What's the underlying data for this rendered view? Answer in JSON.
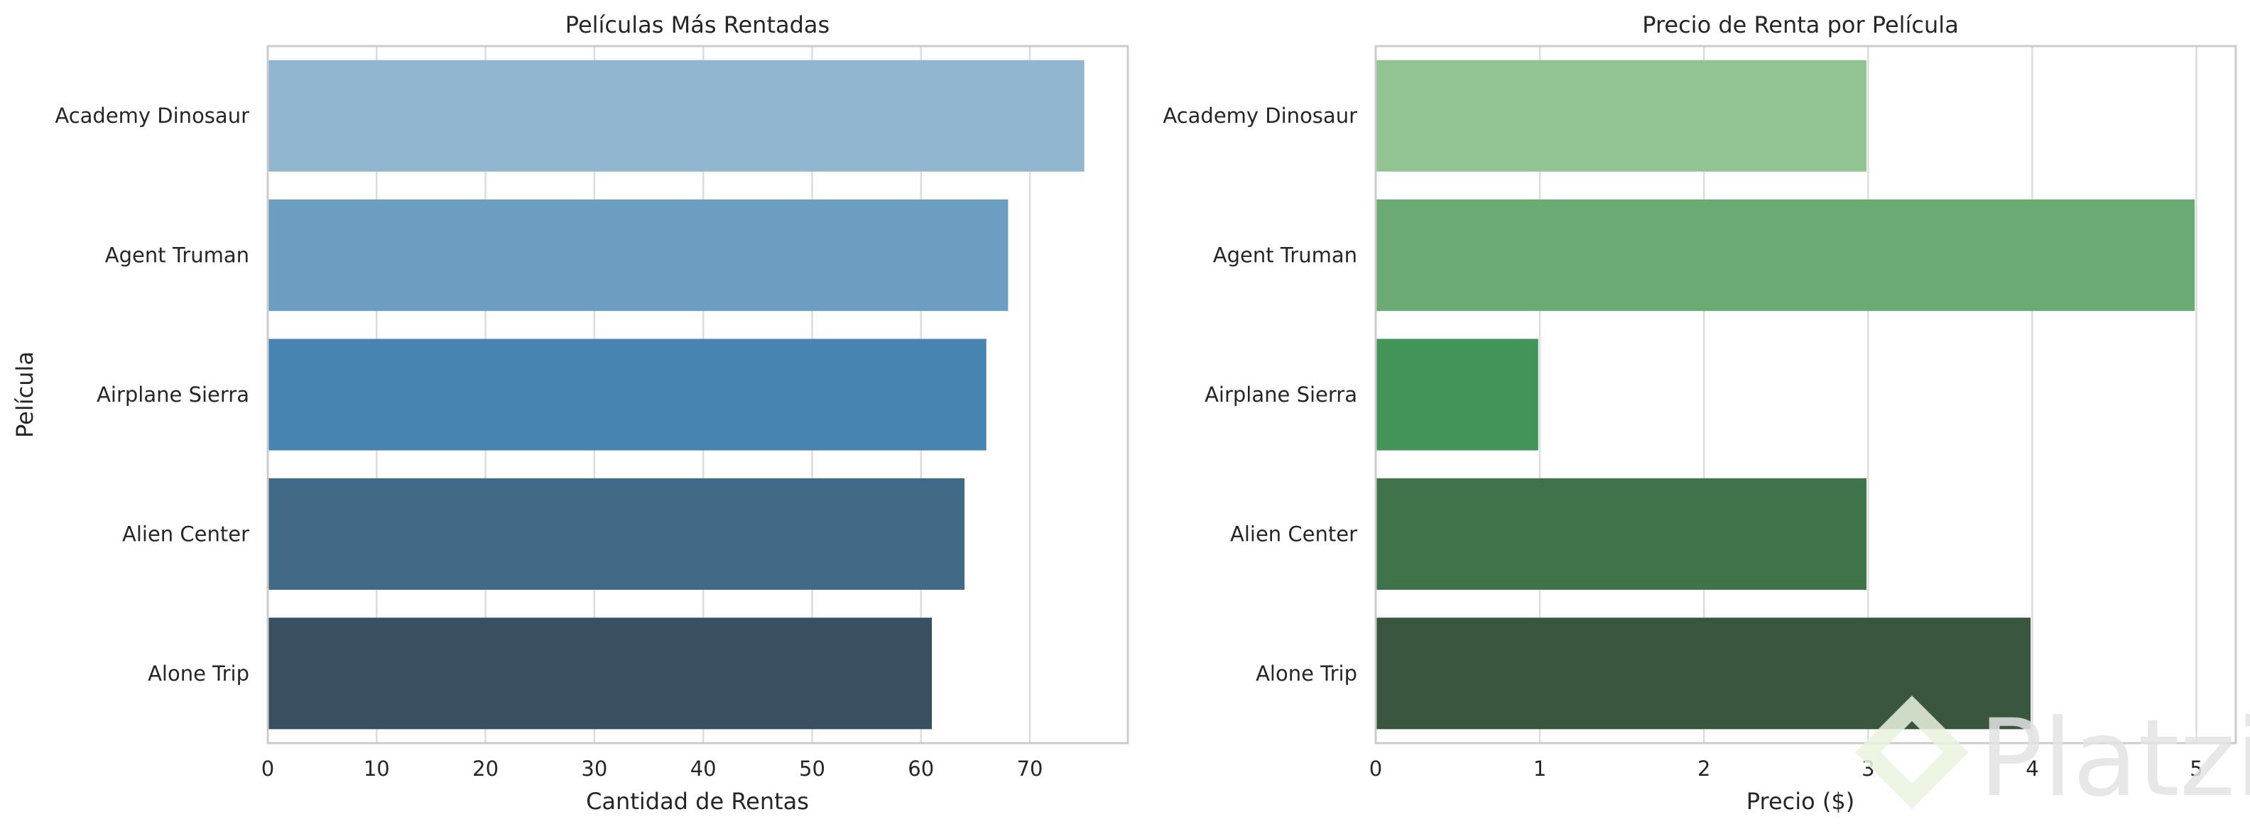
{
  "chart_data": [
    {
      "type": "bar",
      "orientation": "horizontal",
      "title": "Películas Más Rentadas",
      "xlabel": "Cantidad de Rentas",
      "ylabel": "Película",
      "categories": [
        "Academy Dinosaur",
        "Agent Truman",
        "Airplane Sierra",
        "Alien Center",
        "Alone Trip"
      ],
      "values": [
        75,
        68,
        66,
        64,
        61
      ],
      "xlim": [
        0,
        79
      ],
      "xticks": [
        "0",
        "10",
        "20",
        "30",
        "40",
        "50",
        "60",
        "70"
      ],
      "grid": "x",
      "colors": [
        "#92b6d0",
        "#6c9ec2",
        "#4884b1",
        "#416a87",
        "#3a4f5f"
      ]
    },
    {
      "type": "bar",
      "orientation": "horizontal",
      "title": "Precio de Renta por Película",
      "xlabel": "Precio ($)",
      "ylabel": "",
      "categories": [
        "Academy Dinosaur",
        "Agent Truman",
        "Airplane Sierra",
        "Alien Center",
        "Alone Trip"
      ],
      "values": [
        2.99,
        4.99,
        0.99,
        2.99,
        3.99
      ],
      "xlim": [
        0,
        5.24
      ],
      "xticks": [
        "0",
        "1",
        "2",
        "3",
        "4",
        "5"
      ],
      "grid": "x",
      "colors": [
        "#92c392",
        "#6aab74",
        "#439459",
        "#3f744b",
        "#3a563f"
      ]
    }
  ],
  "watermark": {
    "text": "Platzi",
    "icon": "platzi-logo-icon",
    "color": "#e3e3e3"
  }
}
